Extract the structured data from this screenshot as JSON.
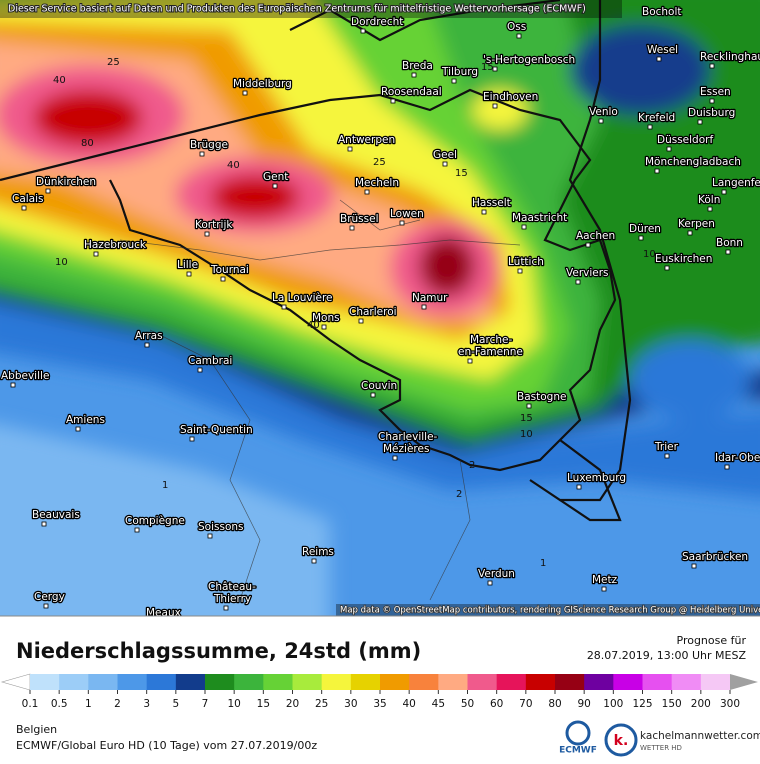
{
  "header": {
    "text": "Dieser Service basiert auf Daten und Produkten des Europäischen Zentrums für mittelfristige Wettervorhersage (ECMWF)",
    "attribution": "Map data © OpenStreetMap contributors, rendering GIScience Research Group @ Heidelberg University"
  },
  "map": {
    "cities": [
      "Dordrecht",
      "Oss",
      "Bocholt",
      "'s-Hertogenbosch",
      "Breda",
      "Tilburg",
      "Wesel",
      "Recklinghausen",
      "Middelburg",
      "Roosendaal",
      "Eindhoven",
      "Essen",
      "Venlo",
      "Duisburg",
      "Krefeld",
      "Brügge",
      "Antwerpen",
      "Düsseldorf",
      "Geel",
      "Mönchengladbach",
      "Gent",
      "Dünkirchen",
      "Mecheln",
      "Hasselt",
      "Langenfeld",
      "Calais",
      "Köln",
      "Kortrijk",
      "Brüssel",
      "Lowen",
      "Maastricht",
      "Düren",
      "Kerpen",
      "Aachen",
      "Hazebrouck",
      "Bonn",
      "Lüttich",
      "Verviers",
      "Euskirchen",
      "Lille",
      "Tournai",
      "Namur",
      "La Louvière",
      "Charleroi",
      "Mons",
      "Arras",
      "Marche-",
      "en-Famenne",
      "Cambrai",
      "Couvin",
      "Abbeville",
      "Bastogne",
      "Amiens",
      "Saint-Quentin",
      "Charleville-",
      "Mézières",
      "Trier",
      "Idar-Obe",
      "Luxemburg",
      "Beauvais",
      "Compiègne",
      "Soissons",
      "Reims",
      "Saarbrücken",
      "Verdun",
      "Metz",
      "Château-",
      "Thierry",
      "Cergy",
      "Meaux"
    ],
    "contour_labels": [
      "25",
      "40",
      "80",
      "40",
      "25",
      "15",
      "15",
      "10",
      "10",
      "40",
      "15",
      "10",
      "2",
      "1",
      "2",
      "1"
    ]
  },
  "legend": {
    "title": "Niederschlagssumme, 24std (mm)",
    "forecast_label": "Prognose für",
    "forecast_time": "28.07.2019, 13:00 Uhr MESZ",
    "ticks": [
      "0.1",
      "0.5",
      "1",
      "2",
      "3",
      "5",
      "7",
      "10",
      "15",
      "20",
      "25",
      "30",
      "35",
      "40",
      "45",
      "50",
      "60",
      "70",
      "80",
      "90",
      "100",
      "125",
      "150",
      "200",
      "300"
    ],
    "colors": [
      "#bfe1fb",
      "#9ccdf7",
      "#7ab7f1",
      "#4d98e8",
      "#2c78d8",
      "#123c8c",
      "#1e8c1e",
      "#3cb43c",
      "#66d236",
      "#a8eb3c",
      "#f5f53c",
      "#e6d200",
      "#f09b00",
      "#f8823c",
      "#ffaa82",
      "#f05a8c",
      "#e6145a",
      "#c80000",
      "#960014",
      "#6e00a0",
      "#c800e6",
      "#e650f0",
      "#f08cf5",
      "#f5c8f5"
    ],
    "low_color": "#ffffff",
    "high_color": "#a0a0a0"
  },
  "footer": {
    "region": "Belgien",
    "model": "ECMWF/Global Euro HD (10 Tage) vom 27.07.2019/00z",
    "ecmwf": "ECMWF",
    "brand_letter": "k.",
    "brand": "kachelmannwetter.com",
    "brand_sub": "WETTER HD"
  }
}
